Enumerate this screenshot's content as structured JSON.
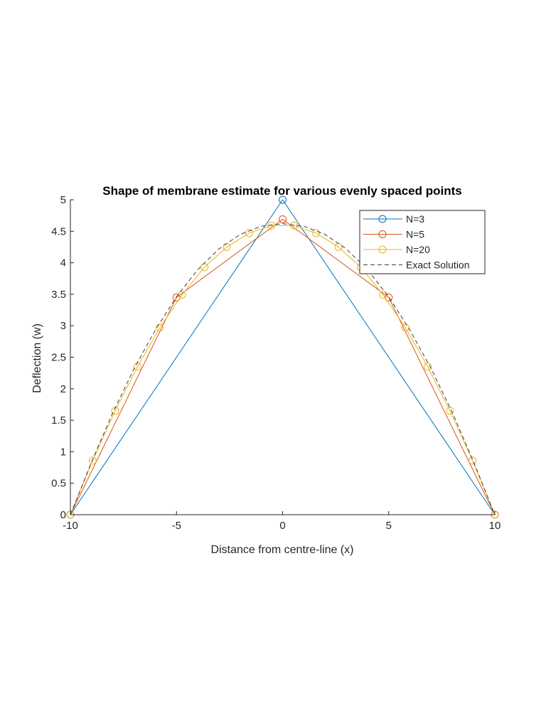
{
  "chart_data": {
    "type": "line",
    "title": "Shape of membrane estimate for various evenly spaced points",
    "xlabel": "Distance from centre-line (x)",
    "ylabel": "Deflection (w)",
    "xlim": [
      -10,
      10
    ],
    "ylim": [
      0,
      5
    ],
    "xticks": [
      -10,
      -5,
      0,
      5,
      10
    ],
    "yticks": [
      0,
      0.5,
      1,
      1.5,
      2,
      2.5,
      3,
      3.5,
      4,
      4.5,
      5
    ],
    "xtick_labels": [
      "-10",
      "-5",
      "0",
      "5",
      "10"
    ],
    "ytick_labels": [
      "0",
      "0.5",
      "1",
      "1.5",
      "2",
      "2.5",
      "3",
      "3.5",
      "4",
      "4.5",
      "5"
    ],
    "grid": false,
    "legend_position": "top-right",
    "series": [
      {
        "name": "N=3",
        "color": "#0072BD",
        "marker": "circle",
        "line": "solid",
        "x": [
          -10,
          0,
          10
        ],
        "y": [
          0,
          5,
          0
        ]
      },
      {
        "name": "N=5",
        "color": "#D95319",
        "marker": "circle",
        "line": "solid",
        "x": [
          -10,
          -5,
          0,
          5,
          10
        ],
        "y": [
          0,
          3.45,
          4.69,
          3.45,
          0
        ]
      },
      {
        "name": "N=20",
        "color": "#EDB120",
        "marker": "circle",
        "line": "solid",
        "x": [
          -10,
          -8.95,
          -7.89,
          -6.84,
          -5.79,
          -4.74,
          -3.68,
          -2.63,
          -1.58,
          -0.53,
          0.53,
          1.58,
          2.63,
          3.68,
          4.74,
          5.79,
          6.84,
          7.89,
          8.95,
          10
        ],
        "y": [
          0,
          0.86,
          1.65,
          2.35,
          2.97,
          3.49,
          3.93,
          4.25,
          4.47,
          4.59,
          4.59,
          4.47,
          4.25,
          3.93,
          3.49,
          2.97,
          2.35,
          1.65,
          0.86,
          0
        ]
      },
      {
        "name": "Exact Solution",
        "color": "#404040",
        "marker": "none",
        "line": "dashed",
        "x": [
          -10,
          -9,
          -8,
          -7,
          -6,
          -5,
          -4,
          -3,
          -2,
          -1,
          0,
          1,
          2,
          3,
          4,
          5,
          6,
          7,
          8,
          9,
          10
        ],
        "y": [
          0,
          0.84,
          1.62,
          2.32,
          2.93,
          3.46,
          3.89,
          4.22,
          4.45,
          4.58,
          4.62,
          4.58,
          4.45,
          4.22,
          3.89,
          3.46,
          2.93,
          2.32,
          1.62,
          0.84,
          0
        ]
      }
    ]
  }
}
